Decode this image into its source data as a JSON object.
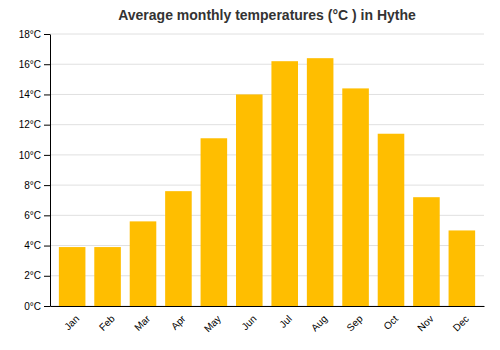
{
  "chart_data": {
    "type": "bar",
    "title": "Average monthly temperatures (°C ) in Hythe",
    "categories": [
      "Jan",
      "Feb",
      "Mar",
      "Apr",
      "May",
      "Jun",
      "Jul",
      "Aug",
      "Sep",
      "Oct",
      "Nov",
      "Dec"
    ],
    "values": [
      3.9,
      3.9,
      5.6,
      7.6,
      11.1,
      14.0,
      16.2,
      16.4,
      14.4,
      11.4,
      7.2,
      5.0
    ],
    "color": "#FFBE00",
    "ylim": [
      0,
      18
    ],
    "yticks": [
      {
        "value": 0,
        "label": "0°C"
      },
      {
        "value": 2,
        "label": "2°C"
      },
      {
        "value": 4,
        "label": "4°C"
      },
      {
        "value": 6,
        "label": "6°C"
      },
      {
        "value": 8,
        "label": "8°C"
      },
      {
        "value": 10,
        "label": "10°C"
      },
      {
        "value": 12,
        "label": "12°C"
      },
      {
        "value": 14,
        "label": "14°C"
      },
      {
        "value": 16,
        "label": "16°C"
      },
      {
        "value": 18,
        "label": "18°C"
      }
    ],
    "grid": true
  }
}
